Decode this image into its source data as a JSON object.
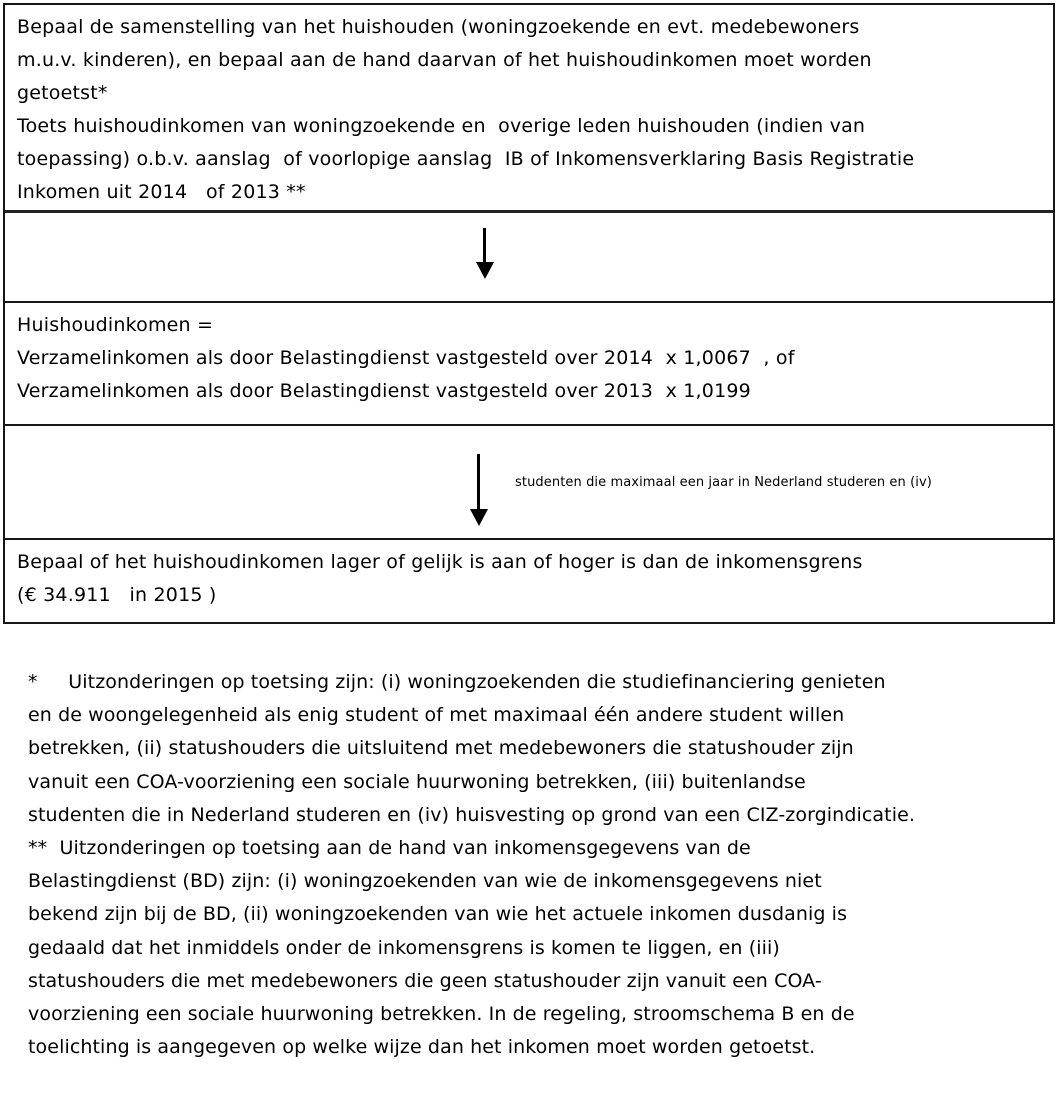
{
  "flow": {
    "step1": {
      "paragraph1": "Bepaal de samenstelling van het huishouden (woningzoekende en evt. medebewoners\nm.u.v. kinderen), en bepaal aan de hand daarvan of het huishoudinkomen moet worden\ngetoetst*",
      "paragraph2": "Toets huishoudinkomen van woningzoekende en  overige leden huishouden (indien van\ntoepassing) o.b.v. aanslag  of voorlopige aanslag  IB of Inkomensverklaring Basis Registratie\nInkomen uit 2014   of 2013 **"
    },
    "arrow1": {
      "icon": "down-arrow"
    },
    "step2": {
      "text": "Huishoudinkomen =\nVerzamelinkomen als door Belastingdienst vastgesteld over 2014  x 1,0067  , of\nVerzamelinkomen als door Belastingdienst vastgesteld over 2013  x 1,0199"
    },
    "arrow2": {
      "icon": "down-arrow",
      "annotation": "studenten die maximaal een jaar in Nederland studeren en (iv)"
    },
    "step3": {
      "text": "Bepaal of het huishoudinkomen lager of gelijk is aan of hoger is dan de inkomensgrens\n(€ 34.911   in 2015 )"
    }
  },
  "footnotes": {
    "first": "*     Uitzonderingen op toetsing zijn: (i) woningzoekenden die studiefinanciering genieten\nen de woongelegenheid als enig student of met maximaal één andere student willen\nbetrekken, (ii) statushouders die uitsluitend met medebewoners die statushouder zijn\nvanuit een COA-voorziening een sociale huurwoning betrekken, (iii) buitenlandse\nstudenten die in Nederland studeren en (iv) huisvesting op grond van een CIZ-zorgindicatie.",
    "second": "**  Uitzonderingen op toetsing aan de hand van inkomensgegevens van de\nBelastingdienst (BD) zijn: (i) woningzoekenden van wie de inkomensgegevens niet\nbekend zijn bij de BD, (ii) woningzoekenden van wie het actuele inkomen dusdanig is\ngedaald dat het inmiddels onder de inkomensgrens is komen te liggen, en (iii)\nstatushouders die met medebewoners die geen statushouder zijn vanuit een COA-\nvoorziening een sociale huurwoning betrekken. In de regeling, stroomschema B en de\ntoelichting is aangegeven op welke wijze dan het inkomen moet worden getoetst."
  },
  "colors": {
    "ink": "#000000",
    "background": "#ffffff",
    "border": "#161616"
  }
}
